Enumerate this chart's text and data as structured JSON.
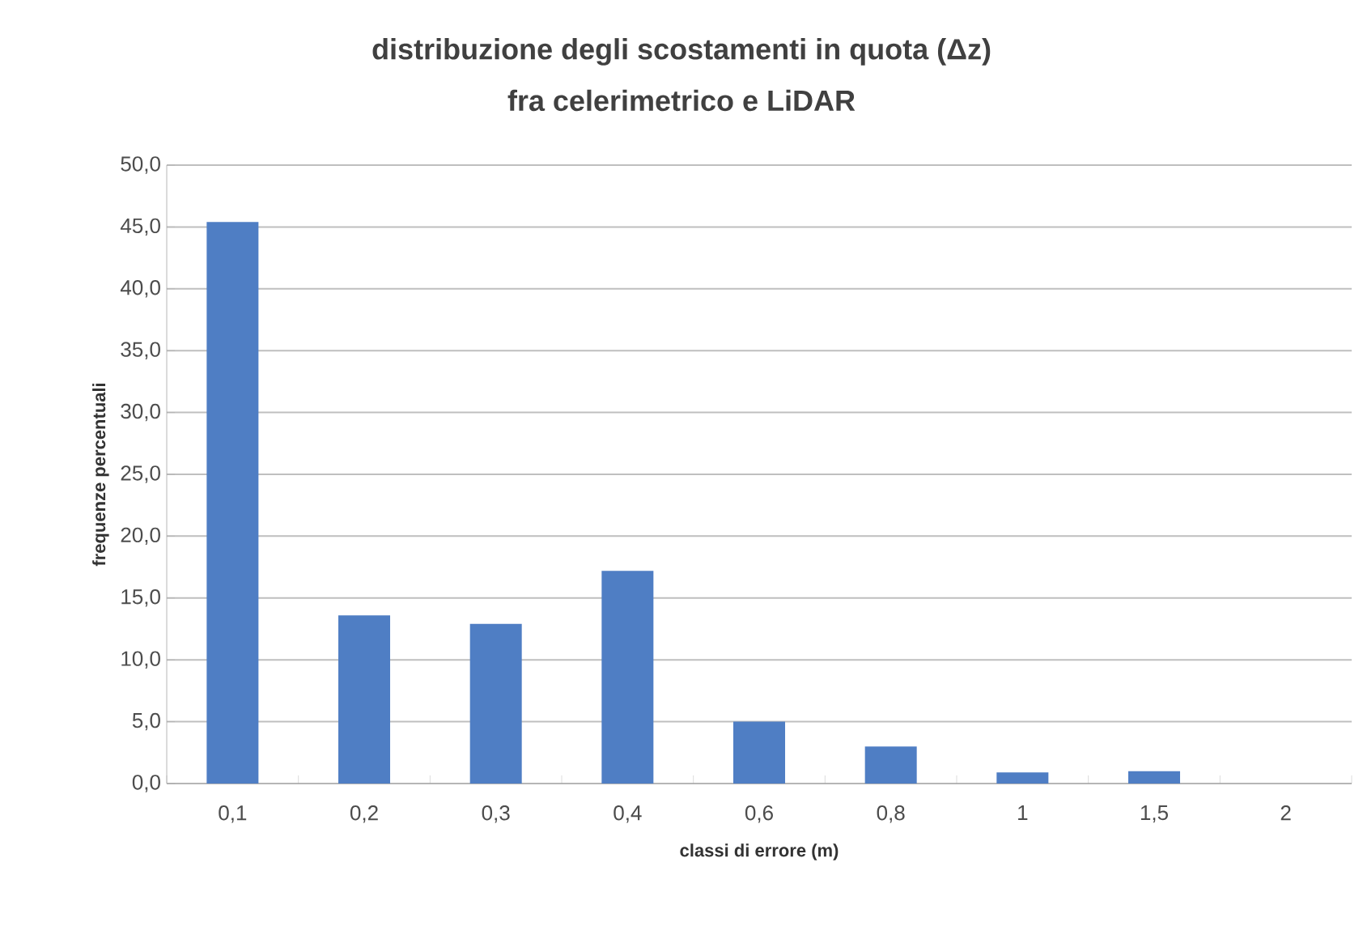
{
  "chart_data": {
    "type": "bar",
    "title": "distribuzione degli scostamenti in quota (Δz)",
    "subtitle": "fra celerimetrico e LiDAR",
    "xlabel": "classi di errore (m)",
    "ylabel": "frequenze percentuali",
    "categories": [
      "0,1",
      "0,2",
      "0,3",
      "0,4",
      "0,6",
      "0,8",
      "1",
      "1,5",
      "2"
    ],
    "values": [
      45.4,
      13.6,
      12.9,
      17.2,
      5.0,
      3.0,
      0.9,
      1.0,
      0
    ],
    "color": "#4f7ec4",
    "ylim": [
      0,
      50
    ],
    "yticks": [
      {
        "value": 0,
        "label": "0,0"
      },
      {
        "value": 5,
        "label": "5,0"
      },
      {
        "value": 10,
        "label": "10,0"
      },
      {
        "value": 15,
        "label": "15,0"
      },
      {
        "value": 20,
        "label": "20,0"
      },
      {
        "value": 25,
        "label": "25,0"
      },
      {
        "value": 30,
        "label": "30,0"
      },
      {
        "value": 35,
        "label": "35,0"
      },
      {
        "value": 40,
        "label": "40,0"
      },
      {
        "value": 45,
        "label": "45,0"
      },
      {
        "value": 50,
        "label": "50,0"
      }
    ],
    "grid": "y"
  }
}
